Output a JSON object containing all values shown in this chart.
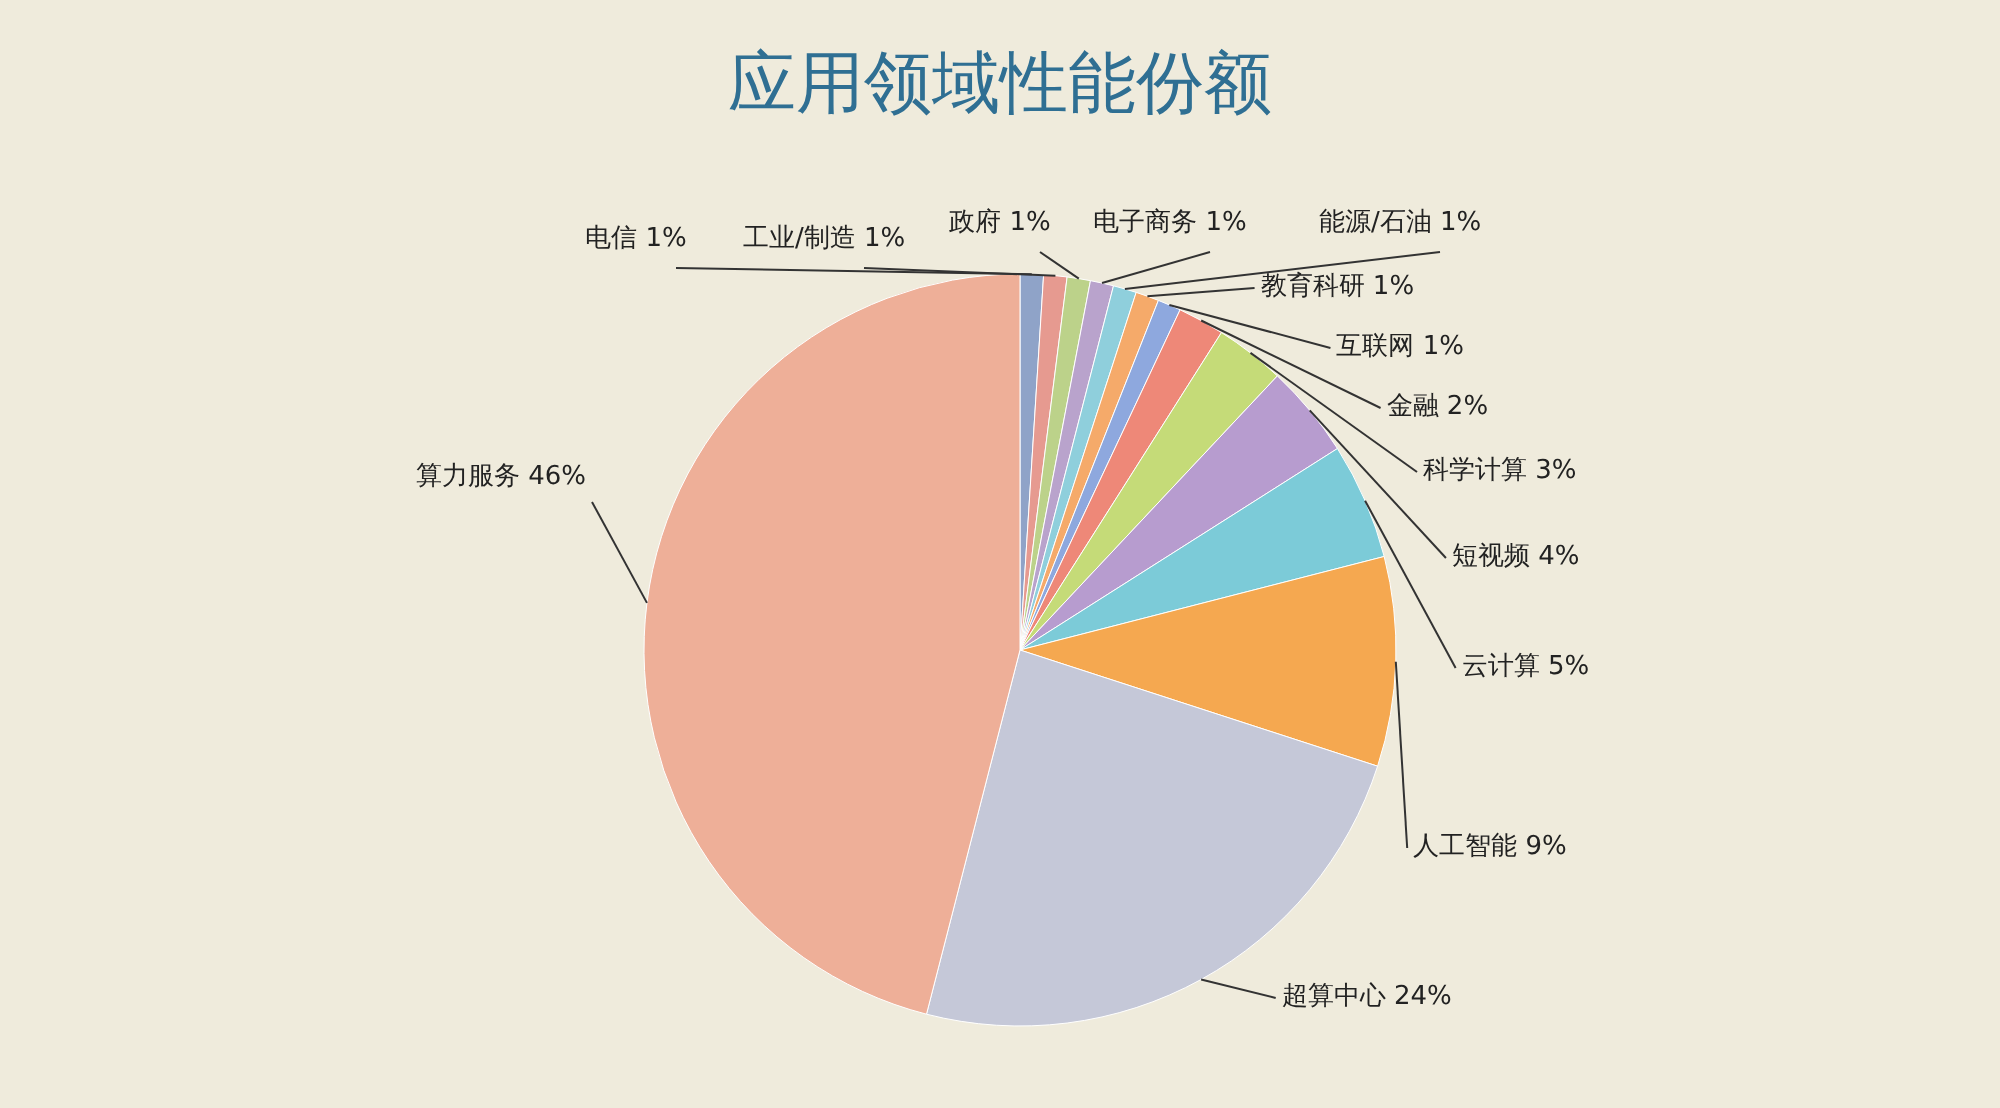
{
  "chart_data": {
    "type": "pie",
    "title": "应用领域性能份额",
    "categories": [
      "电信",
      "工业/制造",
      "政府",
      "电子商务",
      "能源/石油",
      "教育科研",
      "互联网",
      "金融",
      "科学计算",
      "短视频",
      "云计算",
      "人工智能",
      "超算中心",
      "算力服务"
    ],
    "values": [
      1,
      1,
      1,
      1,
      1,
      1,
      1,
      2,
      3,
      4,
      5,
      9,
      24,
      46
    ],
    "value_labels": [
      "1%",
      "1%",
      "1%",
      "1%",
      "1%",
      "1%",
      "1%",
      "2%",
      "3%",
      "4%",
      "5%",
      "9%",
      "24%",
      "46%"
    ],
    "colors": [
      "#8fa3c8",
      "#e69a90",
      "#bcd28a",
      "#b9a3cc",
      "#8fcfdc",
      "#f5aa6a",
      "#8ea8de",
      "#ee8878",
      "#c5db78",
      "#b79ccf",
      "#7ccbd8",
      "#f5a850",
      "#c5c8d8",
      "#eeaf98"
    ]
  }
}
